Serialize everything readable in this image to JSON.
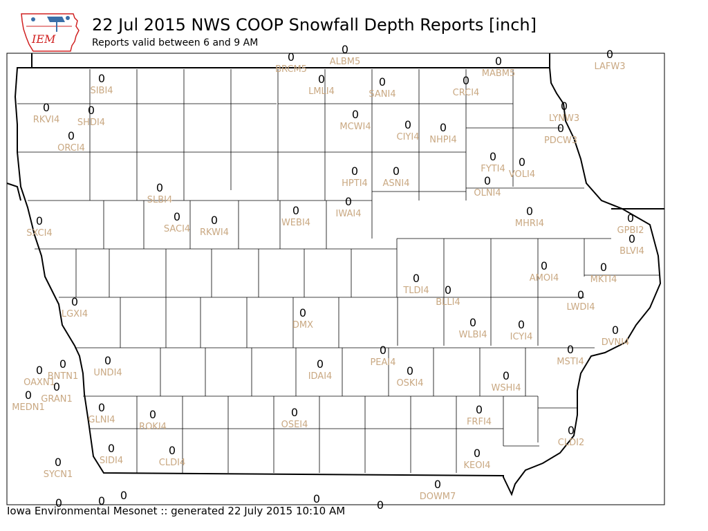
{
  "header": {
    "logo_text": "IEM",
    "title": "22 Jul 2015 NWS COOP Snowfall Depth Reports [inch]",
    "subtitle": "Reports valid between 6 and 9 AM"
  },
  "footer": {
    "text": "Iowa Environmental Mesonet :: generated 22 July 2015 10:10 AM"
  },
  "colors": {
    "station_label": "#c9a882",
    "value": "#000000",
    "border": "#000000"
  },
  "stations": [
    {
      "id": "BRCM5",
      "value": "0"
    },
    {
      "id": "ALBM5",
      "value": "0"
    },
    {
      "id": "MABM5",
      "value": "0"
    },
    {
      "id": "LAFW3",
      "value": "0"
    },
    {
      "id": "SIBI4",
      "value": "0"
    },
    {
      "id": "LMLI4",
      "value": "0"
    },
    {
      "id": "SANI4",
      "value": "0"
    },
    {
      "id": "CRCI4",
      "value": "0"
    },
    {
      "id": "RKVI4",
      "value": "0"
    },
    {
      "id": "SHDI4",
      "value": "0"
    },
    {
      "id": "MCWI4",
      "value": "0"
    },
    {
      "id": "CIYI4",
      "value": "0"
    },
    {
      "id": "NHPI4",
      "value": "0"
    },
    {
      "id": "LYNW3",
      "value": "0"
    },
    {
      "id": "PDCW3",
      "value": "0"
    },
    {
      "id": "ORCI4",
      "value": "0"
    },
    {
      "id": "FYTI4",
      "value": "0"
    },
    {
      "id": "VOLI4",
      "value": "0"
    },
    {
      "id": "HPTI4",
      "value": "0"
    },
    {
      "id": "ASNI4",
      "value": "0"
    },
    {
      "id": "OLNI4",
      "value": "0"
    },
    {
      "id": "SLBI4",
      "value": "0"
    },
    {
      "id": "IWAI4",
      "value": "0"
    },
    {
      "id": "SACI4",
      "value": "0"
    },
    {
      "id": "RKWI4",
      "value": "0"
    },
    {
      "id": "WEBI4",
      "value": "0"
    },
    {
      "id": "MHRI4",
      "value": "0"
    },
    {
      "id": "GPBI2",
      "value": "0"
    },
    {
      "id": "SXCI4",
      "value": "0"
    },
    {
      "id": "BLVI4",
      "value": "0"
    },
    {
      "id": "AMOI4",
      "value": "0"
    },
    {
      "id": "MKTI4",
      "value": "0"
    },
    {
      "id": "TLDI4",
      "value": "0"
    },
    {
      "id": "BLLI4",
      "value": "0"
    },
    {
      "id": "LWDI4",
      "value": "0"
    },
    {
      "id": "LGXI4",
      "value": "0"
    },
    {
      "id": "DMX",
      "value": "0"
    },
    {
      "id": "WLBI4",
      "value": "0"
    },
    {
      "id": "ICYI4",
      "value": "0"
    },
    {
      "id": "DVNI4",
      "value": "0"
    },
    {
      "id": "PEAI4",
      "value": "0"
    },
    {
      "id": "MSTI4",
      "value": "0"
    },
    {
      "id": "UNDI4",
      "value": "0"
    },
    {
      "id": "IDAI4",
      "value": "0"
    },
    {
      "id": "OSKI4",
      "value": "0"
    },
    {
      "id": "BNTN1",
      "value": "0"
    },
    {
      "id": "OAXN1",
      "value": "0"
    },
    {
      "id": "GRAN1",
      "value": "0"
    },
    {
      "id": "WSHI4",
      "value": "0"
    },
    {
      "id": "MEDN1",
      "value": "0"
    },
    {
      "id": "GLNI4",
      "value": "0"
    },
    {
      "id": "FRFI4",
      "value": "0"
    },
    {
      "id": "OSEI4",
      "value": "0"
    },
    {
      "id": "ROKI4",
      "value": "0"
    },
    {
      "id": "CLDI2",
      "value": "0"
    },
    {
      "id": "SIDI4",
      "value": "0"
    },
    {
      "id": "CLDI4",
      "value": "0"
    },
    {
      "id": "KEOI4",
      "value": "0"
    },
    {
      "id": "SYCN1",
      "value": "0"
    },
    {
      "id": "DOWM7",
      "value": "0"
    }
  ],
  "edge_values": [
    "0",
    "0",
    "0",
    "0",
    "0"
  ]
}
